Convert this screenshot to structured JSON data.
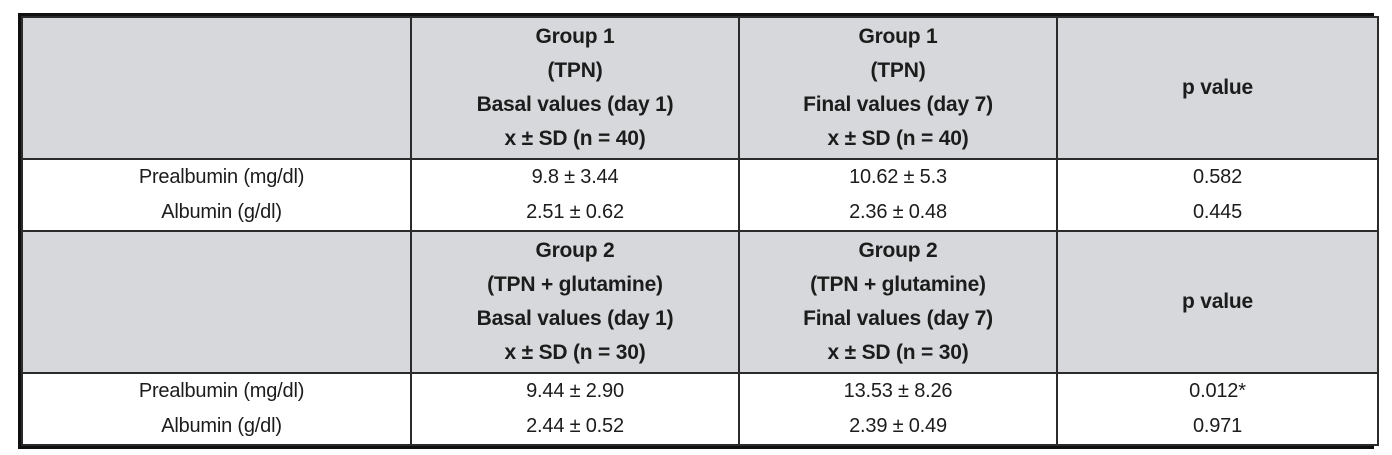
{
  "colors": {
    "header_bg": "#d6d8db",
    "inner_border": "#2b2b2b",
    "outer_border": "#101010",
    "text": "#1c1c1c",
    "row_bg": "#ffffff"
  },
  "table": {
    "sections": [
      {
        "basal_header_lines": [
          "Group 1",
          "(TPN)",
          "Basal values (day 1)",
          "x ± SD (n = 40)"
        ],
        "final_header_lines": [
          "Group 1",
          "(TPN)",
          "Final values (day 7)",
          "x ± SD (n = 40)"
        ],
        "p_header": "p value",
        "rows": [
          {
            "label": "Prealbumin (mg/dl)",
            "basal": "9.8 ± 3.44",
            "final": "10.62 ± 5.3",
            "p": "0.582"
          },
          {
            "label": "Albumin (g/dl)",
            "basal": "2.51 ± 0.62",
            "final": "2.36 ± 0.48",
            "p": "0.445"
          }
        ]
      },
      {
        "basal_header_lines": [
          "Group 2",
          "(TPN + glutamine)",
          "Basal values (day 1)",
          "x ± SD (n = 30)"
        ],
        "final_header_lines": [
          "Group 2",
          "(TPN + glutamine)",
          "Final values (day 7)",
          "x ± SD (n = 30)"
        ],
        "p_header": "p value",
        "rows": [
          {
            "label": "Prealbumin (mg/dl)",
            "basal": "9.44 ± 2.90",
            "final": "13.53 ± 8.26",
            "p": "0.012*"
          },
          {
            "label": "Albumin (g/dl)",
            "basal": "2.44 ± 0.52",
            "final": "2.39 ± 0.49",
            "p": "0.971"
          }
        ]
      }
    ]
  }
}
